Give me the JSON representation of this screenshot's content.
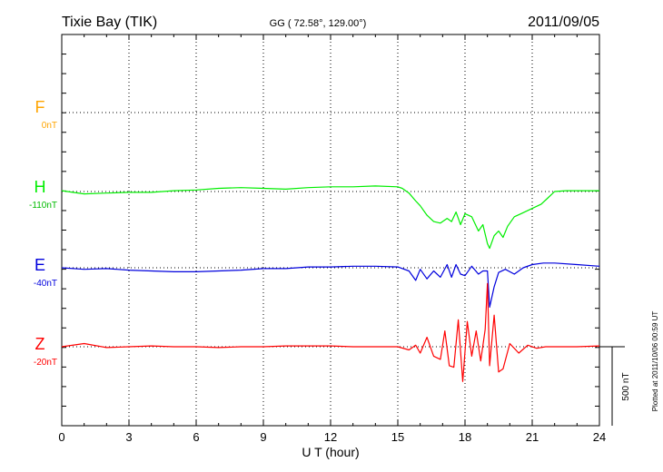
{
  "header": {
    "station": "Tixie Bay (TIK)",
    "coords": "GG ( 72.58°, 129.00°)",
    "date": "2011/09/05"
  },
  "footer_note": "Plotted at 2011/10/06 00:59 UT",
  "scale_bar_label": "500 nT",
  "chart_data": {
    "type": "line",
    "title": "Tixie Bay (TIK)",
    "xlabel": "U T (hour)",
    "ylabel": "",
    "xlim": [
      0,
      24
    ],
    "x_ticks": [
      "0",
      "3",
      "6",
      "9",
      "12",
      "15",
      "18",
      "21",
      "24"
    ],
    "grid": true,
    "scale_bar_nT": 500,
    "series": [
      {
        "name": "F",
        "baseline_label": "0nT",
        "color": "#ffa500",
        "x": [],
        "values": []
      },
      {
        "name": "H",
        "baseline_label": "-110nT",
        "color": "#00ee00",
        "x": [
          0,
          1,
          2,
          3,
          4,
          5,
          6,
          7,
          8,
          9,
          10,
          11,
          12,
          13,
          14,
          15,
          15.2,
          15.5,
          15.8,
          16.0,
          16.3,
          16.6,
          16.9,
          17.2,
          17.4,
          17.6,
          17.8,
          18.0,
          18.3,
          18.6,
          18.8,
          19.0,
          19.1,
          19.3,
          19.5,
          19.7,
          19.9,
          20.2,
          20.5,
          20.8,
          21.1,
          21.4,
          21.7,
          22.0,
          22.5,
          23,
          23.5,
          24
        ],
        "values": [
          5,
          -15,
          -10,
          -5,
          -5,
          5,
          10,
          20,
          25,
          20,
          15,
          25,
          30,
          30,
          35,
          30,
          20,
          -10,
          -60,
          -90,
          -150,
          -190,
          -200,
          -170,
          -190,
          -130,
          -210,
          -140,
          -160,
          -250,
          -210,
          -330,
          -360,
          -280,
          -250,
          -290,
          -220,
          -160,
          -140,
          -120,
          -100,
          -80,
          -40,
          0,
          5,
          5,
          5,
          5
        ]
      },
      {
        "name": "E",
        "baseline_label": "-40nT",
        "color": "#0000dd",
        "x": [
          0,
          1,
          2,
          3,
          4,
          5,
          6,
          7,
          8,
          9,
          10,
          11,
          12,
          13,
          14,
          15,
          15.5,
          15.8,
          16.0,
          16.3,
          16.6,
          16.9,
          17.2,
          17.4,
          17.6,
          17.8,
          18.0,
          18.3,
          18.6,
          18.8,
          19.0,
          19.1,
          19.3,
          19.5,
          19.8,
          20.2,
          20.6,
          21,
          21.5,
          22,
          23,
          24
        ],
        "values": [
          0,
          -10,
          -5,
          -15,
          -20,
          -25,
          -25,
          -20,
          -15,
          -5,
          -5,
          5,
          5,
          10,
          10,
          5,
          -20,
          -80,
          -10,
          -70,
          -20,
          -60,
          20,
          -60,
          20,
          -40,
          -50,
          10,
          -40,
          -20,
          -20,
          -250,
          -120,
          -30,
          -10,
          -40,
          0,
          20,
          30,
          30,
          20,
          10
        ]
      },
      {
        "name": "Z",
        "baseline_label": "-20nT",
        "color": "#ff0000",
        "x": [
          0,
          1,
          2,
          3,
          4,
          5,
          6,
          7,
          8,
          9,
          10,
          11,
          12,
          13,
          14,
          15,
          15.5,
          15.8,
          16.0,
          16.3,
          16.6,
          16.9,
          17.1,
          17.3,
          17.5,
          17.7,
          17.9,
          18.1,
          18.3,
          18.5,
          18.7,
          18.9,
          19.0,
          19.1,
          19.3,
          19.5,
          19.7,
          20.0,
          20.4,
          20.8,
          21.2,
          21.6,
          22,
          23,
          24
        ],
        "values": [
          0,
          20,
          -5,
          0,
          5,
          0,
          0,
          -5,
          0,
          0,
          5,
          5,
          5,
          0,
          0,
          0,
          -20,
          10,
          -40,
          60,
          -60,
          -80,
          100,
          -120,
          -130,
          170,
          -220,
          160,
          -60,
          100,
          -90,
          110,
          400,
          -120,
          200,
          -160,
          -140,
          20,
          -40,
          10,
          -10,
          0,
          0,
          0,
          5
        ]
      }
    ]
  }
}
